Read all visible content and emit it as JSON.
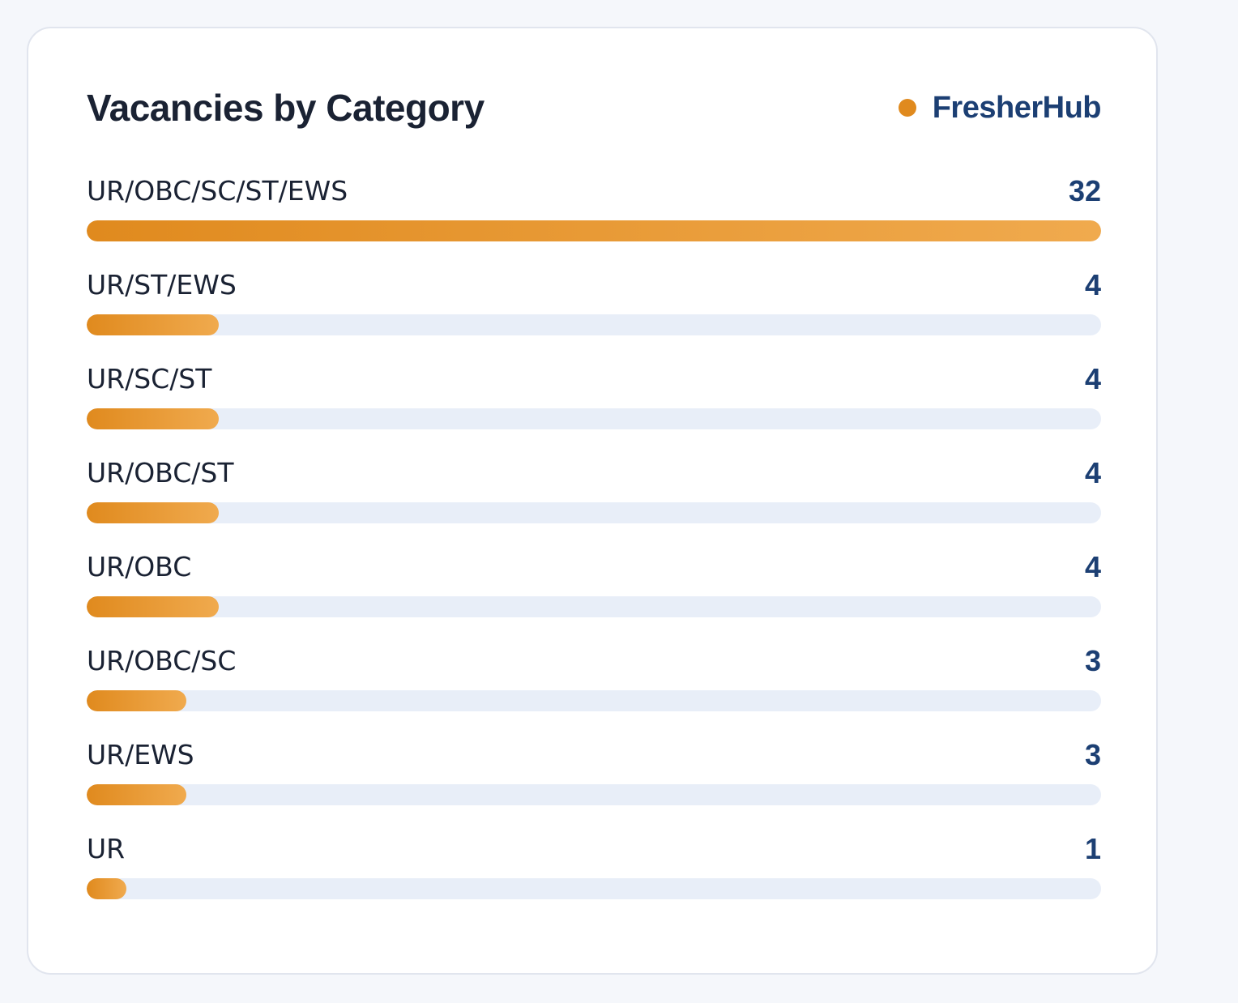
{
  "card": {
    "title": "Vacancies by Category",
    "brand": "FresherHub"
  },
  "colors": {
    "accent": "#e08a1e",
    "accent_light": "#f0aa4e",
    "value_text": "#1c3f73",
    "track": "#e8eef8",
    "title_text": "#1a2233"
  },
  "chart_data": {
    "type": "bar",
    "orientation": "horizontal",
    "title": "Vacancies by Category",
    "categories": [
      "UR/OBC/SC/ST/EWS",
      "UR/ST/EWS",
      "UR/SC/ST",
      "UR/OBC/ST",
      "UR/OBC",
      "UR/OBC/SC",
      "UR/EWS",
      "UR"
    ],
    "values": [
      32,
      4,
      4,
      4,
      4,
      3,
      3,
      1
    ],
    "xlim": [
      0,
      32
    ],
    "grid": false,
    "legend": "none"
  }
}
